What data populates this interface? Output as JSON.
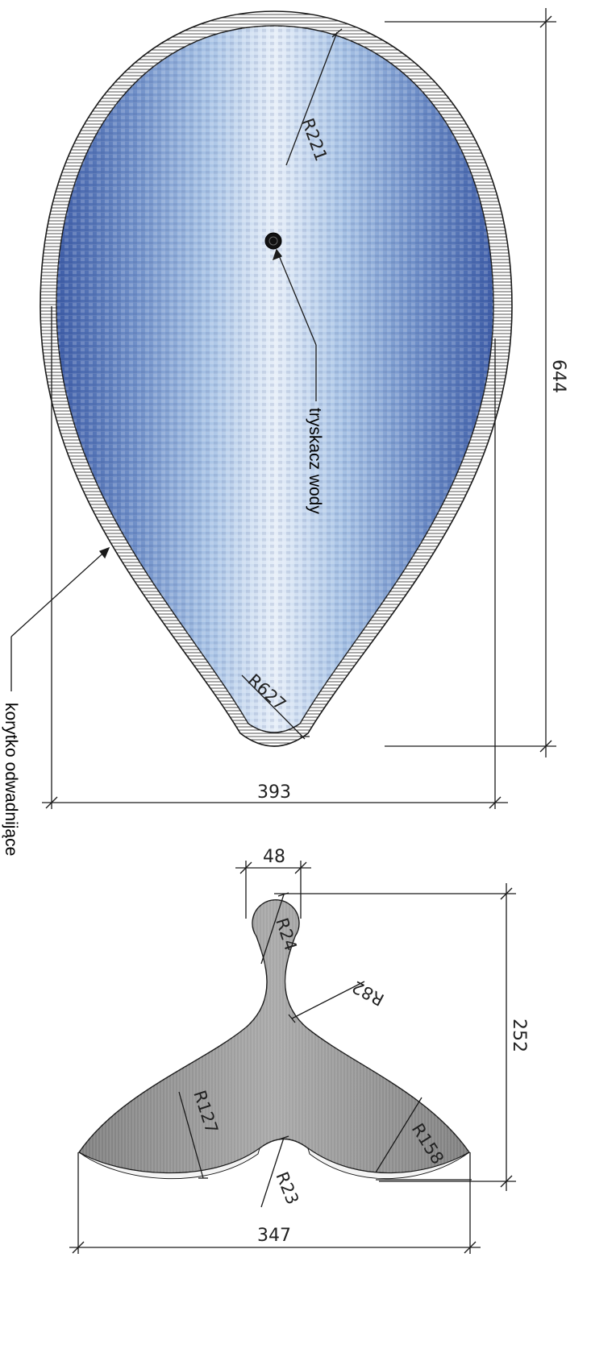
{
  "dimensions": {
    "pool_length": "644",
    "pool_width": "393",
    "tail_neck_width": "48",
    "tail_height": "252",
    "tail_span": "347"
  },
  "radii": {
    "r_top": "R221",
    "r_bottom": "R627",
    "r_neck_end": "R24",
    "r_neck_flare": "R82",
    "r_left_fluke": "R127",
    "r_right_fluke": "R158",
    "r_notch": "R23"
  },
  "labels": {
    "fountain": "tryskacz wody",
    "drain": "korytko odwadnijące"
  },
  "colors": {
    "water_dark": "#3f5ea8",
    "water_light": "#e6eef8",
    "tail_grey": "#8a8a8a",
    "line": "#1a1a1a"
  }
}
